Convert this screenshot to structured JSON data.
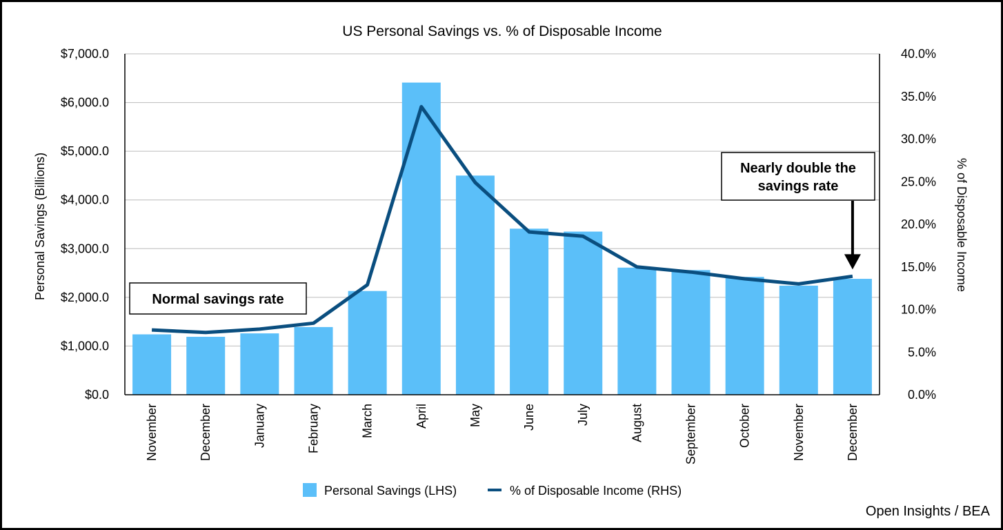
{
  "chart_data": {
    "type": "bar+line",
    "title": "US Personal Savings vs. % of Disposable Income",
    "categories": [
      "November",
      "December",
      "January",
      "February",
      "March",
      "April",
      "May",
      "June",
      "July",
      "August",
      "September",
      "October",
      "November",
      "December"
    ],
    "series": [
      {
        "name": "Personal Savings (LHS)",
        "type": "bar",
        "axis": "left",
        "color": "#5BBFF9",
        "values": [
          1240,
          1190,
          1260,
          1390,
          2130,
          6410,
          4500,
          3410,
          3350,
          2610,
          2560,
          2420,
          2240,
          2380
        ]
      },
      {
        "name": "% of Disposable Income (RHS)",
        "type": "line",
        "axis": "right",
        "color": "#0A4E7F",
        "values": [
          7.6,
          7.3,
          7.7,
          8.4,
          12.9,
          33.8,
          24.9,
          19.1,
          18.6,
          15.0,
          14.4,
          13.6,
          13.0,
          13.9
        ]
      }
    ],
    "left_axis": {
      "label": "Personal Savings (Billions)",
      "min": 0,
      "max": 7000,
      "step": 1000,
      "tick_labels": [
        "$0.0",
        "$1,000.0",
        "$2,000.0",
        "$3,000.0",
        "$4,000.0",
        "$5,000.0",
        "$6,000.0",
        "$7,000.0"
      ]
    },
    "right_axis": {
      "label": "% of Disposable Income",
      "min": 0,
      "max": 40,
      "step": 5,
      "tick_labels": [
        "0.0%",
        "5.0%",
        "10.0%",
        "15.0%",
        "20.0%",
        "25.0%",
        "30.0%",
        "35.0%",
        "40.0%"
      ]
    },
    "grid": true,
    "legend_position": "bottom-center",
    "annotations": [
      {
        "text": "Normal savings rate"
      },
      {
        "text_lines": [
          "Nearly double the",
          "savings rate"
        ],
        "arrow_to_category_index": 13
      }
    ],
    "source": "Open Insights / BEA",
    "axis_color": "#000000",
    "grid_color": "#BBBBBB"
  }
}
